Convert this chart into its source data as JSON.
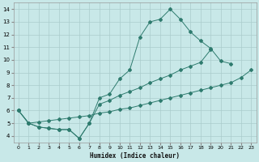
{
  "xlabel": "Humidex (Indice chaleur)",
  "bg_color": "#c8e8e8",
  "grid_color": "#aacccc",
  "line_color": "#2e7b6e",
  "xlim": [
    -0.5,
    23.5
  ],
  "ylim": [
    3.5,
    14.5
  ],
  "xticks": [
    0,
    1,
    2,
    3,
    4,
    5,
    6,
    7,
    8,
    9,
    10,
    11,
    12,
    13,
    14,
    15,
    16,
    17,
    18,
    19,
    20,
    21,
    22,
    23
  ],
  "yticks": [
    4,
    5,
    6,
    7,
    8,
    9,
    10,
    11,
    12,
    13,
    14
  ],
  "line1_x": [
    0,
    1,
    2,
    3,
    4,
    5,
    6,
    7,
    8,
    9,
    10,
    11,
    12,
    13,
    14,
    15,
    16,
    17,
    18,
    19,
    20,
    21
  ],
  "line1_y": [
    6.0,
    5.0,
    4.7,
    4.6,
    4.5,
    4.5,
    3.8,
    5.0,
    7.0,
    7.3,
    8.5,
    9.2,
    11.8,
    13.0,
    13.2,
    14.0,
    13.2,
    12.2,
    11.5,
    10.9,
    9.9,
    9.7
  ],
  "line2_x": [
    0,
    1,
    2,
    3,
    4,
    5,
    6,
    7,
    8,
    9,
    10,
    11,
    12,
    13,
    14,
    15,
    16,
    17,
    18,
    19,
    20,
    21,
    22,
    23
  ],
  "line2_y": [
    6.0,
    5.0,
    5.1,
    5.2,
    5.3,
    5.4,
    5.5,
    5.6,
    5.8,
    5.9,
    6.1,
    6.2,
    6.4,
    6.6,
    6.8,
    7.0,
    7.2,
    7.4,
    7.6,
    7.8,
    8.0,
    8.2,
    8.6,
    9.2
  ],
  "line3_x": [
    0,
    1,
    2,
    3,
    4,
    5,
    6,
    7,
    8,
    9,
    10,
    11,
    12,
    13,
    14,
    15,
    16,
    17,
    18,
    19
  ],
  "line3_y": [
    6.0,
    5.0,
    4.7,
    4.6,
    4.5,
    4.5,
    3.8,
    5.0,
    6.5,
    6.8,
    7.2,
    7.5,
    7.8,
    8.2,
    8.5,
    8.8,
    9.2,
    9.5,
    9.8,
    10.8
  ]
}
